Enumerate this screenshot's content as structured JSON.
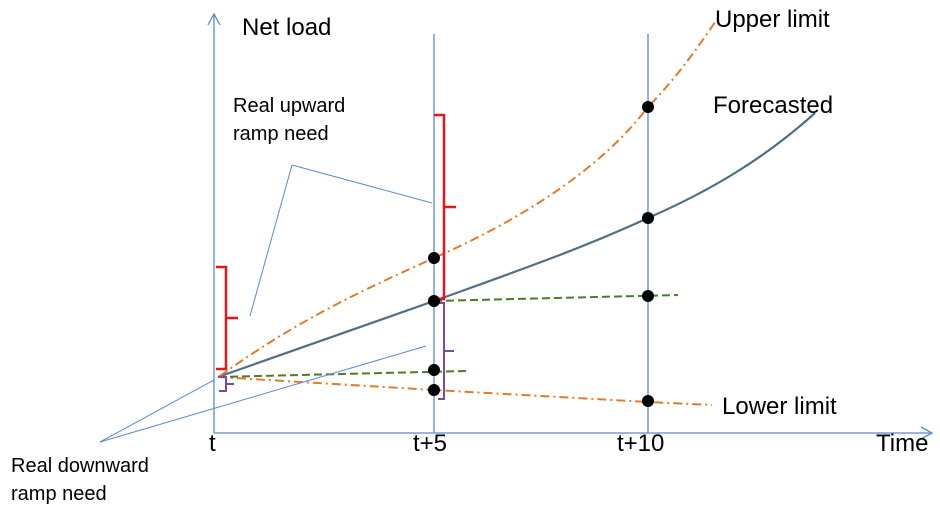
{
  "axes": {
    "y_label": "Net load",
    "x_label": "Time"
  },
  "time_ticks": [
    "t",
    "t+5",
    "t+10"
  ],
  "curves": {
    "upper": "Upper limit",
    "forecast": "Forecasted",
    "lower": "Lower limit"
  },
  "annotations": {
    "upward_line1": "Real upward",
    "upward_line2": "ramp need",
    "downward_line1": "Real downward",
    "downward_line2": "ramp need"
  },
  "colors": {
    "axis": "#5b8bc9",
    "forecast": "#4f6f86",
    "upper_lower": "#e07b2c",
    "trend": "#4e7a2a",
    "upward_brace": "#e8151b",
    "downward_brace": "#7a4c9c",
    "point": "#000000"
  }
}
